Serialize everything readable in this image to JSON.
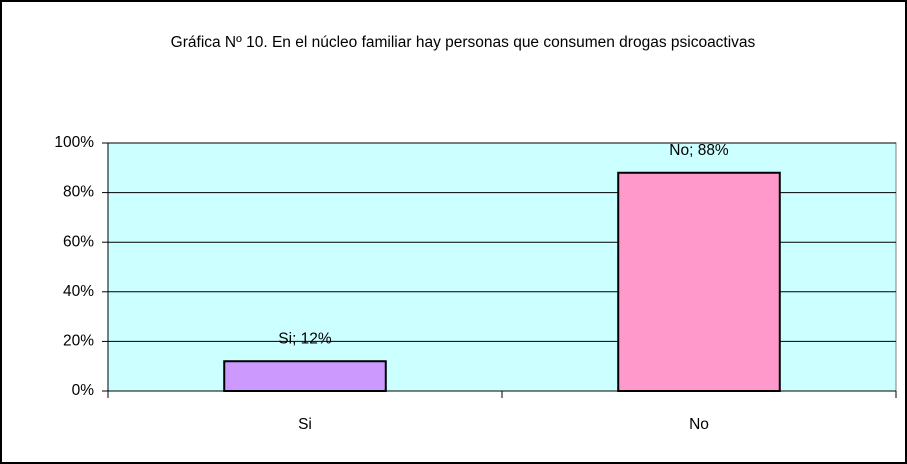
{
  "chart_data": {
    "type": "bar",
    "title": "Gráfica Nº 10.  En el núcleo familiar hay personas que consumen drogas psicoactivas",
    "categories": [
      "Si",
      "No"
    ],
    "values": [
      12,
      88
    ],
    "value_labels": [
      "Si; 12%",
      "No; 88%"
    ],
    "colors": [
      "#cc99ff",
      "#ff99cc"
    ],
    "ylim": [
      0,
      100
    ],
    "yticks": [
      {
        "value": 0,
        "label": "0%"
      },
      {
        "value": 20,
        "label": "20%"
      },
      {
        "value": 40,
        "label": "40%"
      },
      {
        "value": 60,
        "label": "60%"
      },
      {
        "value": 80,
        "label": "80%"
      },
      {
        "value": 100,
        "label": "100%"
      }
    ],
    "grid": true
  }
}
